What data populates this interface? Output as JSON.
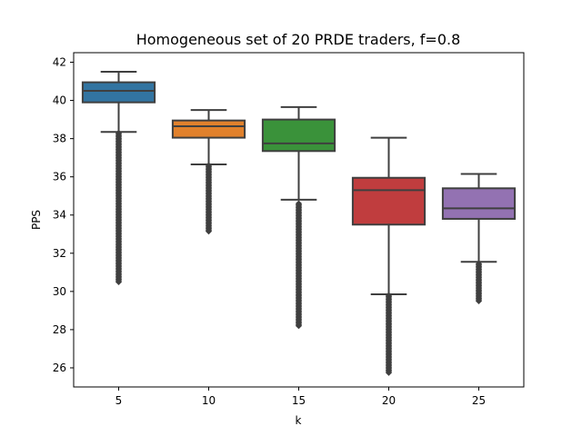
{
  "chart_data": {
    "type": "box",
    "title": "Homogeneous set of 20 PRDE traders, f=0.8",
    "xlabel": "k",
    "ylabel": "PPS",
    "categories": [
      "5",
      "10",
      "15",
      "20",
      "25"
    ],
    "ylim": [
      25.0,
      42.5
    ],
    "yticks": [
      26,
      28,
      30,
      32,
      34,
      36,
      38,
      40,
      42
    ],
    "grid": false,
    "series": [
      {
        "category": "5",
        "color": "#3274a1",
        "whisker_low": 38.35,
        "q1": 39.9,
        "median": 40.5,
        "q3": 40.95,
        "whisker_high": 41.5,
        "outlier_min": 30.5,
        "outlier_max": 38.3
      },
      {
        "category": "10",
        "color": "#e1812c",
        "whisker_low": 36.65,
        "q1": 38.05,
        "median": 38.65,
        "q3": 38.95,
        "whisker_high": 39.5,
        "outlier_min": 33.15,
        "outlier_max": 36.6
      },
      {
        "category": "15",
        "color": "#3a923a",
        "whisker_low": 34.8,
        "q1": 37.35,
        "median": 37.75,
        "q3": 39.0,
        "whisker_high": 39.65,
        "outlier_min": 28.2,
        "outlier_max": 34.6
      },
      {
        "category": "20",
        "color": "#c03d3e",
        "whisker_low": 29.85,
        "q1": 33.5,
        "median": 35.3,
        "q3": 35.95,
        "whisker_high": 38.05,
        "outlier_min": 25.75,
        "outlier_max": 29.8
      },
      {
        "category": "25",
        "color": "#9372b2",
        "whisker_low": 31.55,
        "q1": 33.8,
        "median": 34.35,
        "q3": 35.4,
        "whisker_high": 36.15,
        "outlier_min": 29.5,
        "outlier_max": 31.45
      }
    ]
  }
}
